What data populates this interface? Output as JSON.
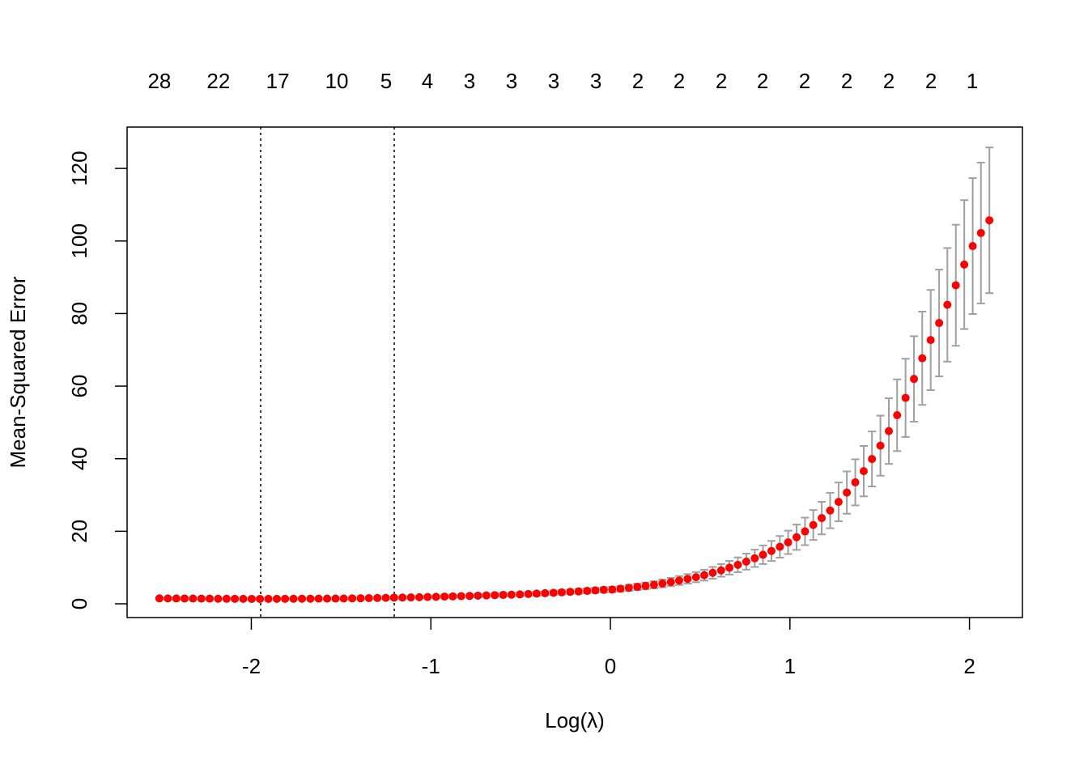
{
  "chart_data": {
    "type": "errorbar",
    "x_label": "Log(λ)",
    "y_label": "Mean-Squared Error",
    "xlim": [
      -2.692,
      2.295
    ],
    "ylim": [
      -3.79,
      131.4
    ],
    "xticks": [
      -2,
      -1,
      0,
      1,
      2
    ],
    "yticks": [
      0,
      20,
      40,
      60,
      80,
      100,
      120
    ],
    "top_ticks": [
      {
        "value": -2.512,
        "label": "28"
      },
      {
        "value": -2.183,
        "label": "22"
      },
      {
        "value": -1.853,
        "label": "17"
      },
      {
        "value": -1.524,
        "label": "10"
      },
      {
        "value": -1.249,
        "label": "5"
      },
      {
        "value": -1.019,
        "label": "4"
      },
      {
        "value": -0.785,
        "label": "3"
      },
      {
        "value": -0.55,
        "label": "3"
      },
      {
        "value": -0.316,
        "label": "3"
      },
      {
        "value": -0.081,
        "label": "3"
      },
      {
        "value": 0.153,
        "label": "2"
      },
      {
        "value": 0.383,
        "label": "2"
      },
      {
        "value": 0.618,
        "label": "2"
      },
      {
        "value": 0.848,
        "label": "2"
      },
      {
        "value": 1.082,
        "label": "2"
      },
      {
        "value": 1.317,
        "label": "2"
      },
      {
        "value": 1.551,
        "label": "2"
      },
      {
        "value": 1.786,
        "label": "2"
      },
      {
        "value": 2.016,
        "label": "1"
      }
    ],
    "vlines": [
      -1.948,
      -1.204
    ],
    "color": "#ff0000",
    "error_color": "#a0a0a0",
    "x": [
      -2.512,
      -2.465,
      -2.418,
      -2.372,
      -2.325,
      -2.278,
      -2.232,
      -2.185,
      -2.138,
      -2.092,
      -2.045,
      -1.998,
      -1.952,
      -1.905,
      -1.858,
      -1.812,
      -1.765,
      -1.718,
      -1.671,
      -1.625,
      -1.578,
      -1.531,
      -1.485,
      -1.438,
      -1.391,
      -1.345,
      -1.298,
      -1.251,
      -1.205,
      -1.158,
      -1.111,
      -1.064,
      -1.018,
      -0.971,
      -0.924,
      -0.878,
      -0.831,
      -0.784,
      -0.738,
      -0.691,
      -0.644,
      -0.597,
      -0.551,
      -0.504,
      -0.457,
      -0.411,
      -0.364,
      -0.317,
      -0.271,
      -0.224,
      -0.177,
      -0.13,
      -0.084,
      -0.037,
      0.01,
      0.056,
      0.103,
      0.15,
      0.196,
      0.243,
      0.29,
      0.337,
      0.383,
      0.43,
      0.477,
      0.523,
      0.57,
      0.617,
      0.663,
      0.71,
      0.757,
      0.804,
      0.85,
      0.897,
      0.944,
      0.99,
      1.037,
      1.084,
      1.13,
      1.177,
      1.224,
      1.271,
      1.317,
      1.364,
      1.411,
      1.457,
      1.504,
      1.551,
      1.597,
      1.644,
      1.691,
      1.737,
      1.784,
      1.831,
      1.877,
      1.924,
      1.971,
      2.018,
      2.064,
      2.111
    ],
    "values": [
      1.5,
      1.48,
      1.47,
      1.46,
      1.44,
      1.43,
      1.42,
      1.4,
      1.39,
      1.38,
      1.37,
      1.35,
      1.35,
      1.36,
      1.37,
      1.38,
      1.39,
      1.4,
      1.41,
      1.42,
      1.43,
      1.44,
      1.45,
      1.49,
      1.53,
      1.57,
      1.61,
      1.65,
      1.69,
      1.73,
      1.77,
      1.82,
      1.87,
      1.93,
      1.99,
      2.05,
      2.11,
      2.17,
      2.24,
      2.31,
      2.38,
      2.45,
      2.52,
      2.6,
      2.7,
      2.81,
      2.92,
      3.04,
      3.16,
      3.29,
      3.42,
      3.56,
      3.7,
      3.85,
      3.93,
      4.16,
      4.41,
      4.67,
      4.94,
      5.23,
      5.62,
      6.01,
      6.42,
      6.87,
      7.34,
      7.9,
      8.53,
      9.21,
      9.95,
      10.75,
      11.63,
      12.54,
      13.52,
      14.57,
      15.71,
      16.94,
      18.35,
      19.96,
      21.72,
      23.63,
      25.71,
      28.08,
      30.66,
      33.48,
      36.56,
      39.92,
      43.59,
      47.6,
      51.98,
      56.76,
      61.98,
      67.68,
      72.7,
      77.4,
      82.4,
      87.8,
      93.5,
      98.6,
      102.2,
      105.7
    ],
    "errors": [
      0.29,
      0.28,
      0.28,
      0.28,
      0.27,
      0.27,
      0.27,
      0.27,
      0.26,
      0.26,
      0.26,
      0.26,
      0.26,
      0.26,
      0.26,
      0.26,
      0.26,
      0.27,
      0.27,
      0.27,
      0.27,
      0.27,
      0.28,
      0.28,
      0.29,
      0.3,
      0.31,
      0.31,
      0.32,
      0.33,
      0.34,
      0.35,
      0.36,
      0.37,
      0.38,
      0.39,
      0.4,
      0.41,
      0.43,
      0.44,
      0.45,
      0.47,
      0.48,
      0.49,
      0.51,
      0.53,
      0.55,
      0.58,
      0.6,
      0.63,
      0.65,
      0.68,
      0.7,
      0.73,
      0.75,
      0.79,
      0.84,
      0.89,
      0.94,
      0.99,
      1.07,
      1.14,
      1.22,
      1.31,
      1.39,
      1.5,
      1.62,
      1.75,
      1.89,
      2.04,
      2.21,
      2.38,
      2.57,
      2.77,
      2.98,
      3.22,
      3.49,
      3.79,
      4.13,
      4.49,
      4.88,
      5.34,
      5.83,
      6.36,
      6.95,
      7.58,
      8.28,
      9.04,
      9.88,
      10.78,
      11.78,
      12.86,
      13.81,
      14.71,
      15.66,
      16.68,
      17.77,
      18.73,
      19.42,
      20.08
    ]
  }
}
